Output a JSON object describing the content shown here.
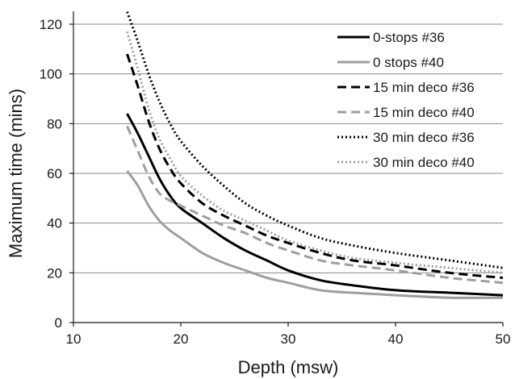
{
  "chart_data": {
    "type": "line",
    "title": "",
    "xlabel": "Depth (msw)",
    "ylabel": "Maximum time (mins)",
    "xlim": [
      10,
      50
    ],
    "ylim": [
      0,
      120
    ],
    "x_ticks": [
      10,
      20,
      30,
      40,
      50
    ],
    "y_ticks": [
      0,
      20,
      40,
      60,
      80,
      100,
      120
    ],
    "grid": "horizontal",
    "legend_position": "top-right",
    "series": [
      {
        "name": "0-stops #36",
        "color": "#000000",
        "dash": "solid",
        "x": [
          15,
          16,
          17,
          18,
          19,
          20,
          22,
          24,
          26,
          28,
          30,
          33,
          36,
          40,
          45,
          50
        ],
        "y": [
          84,
          76,
          67,
          58,
          51,
          46,
          40,
          34,
          29,
          25,
          21,
          17,
          15,
          13,
          12,
          11
        ]
      },
      {
        "name": "0 stops #40",
        "color": "#9e9e9e",
        "dash": "solid",
        "x": [
          15,
          16,
          17,
          18,
          19,
          20,
          22,
          24,
          26,
          28,
          30,
          33,
          36,
          40,
          45,
          50
        ],
        "y": [
          61,
          55,
          47,
          41,
          37,
          34,
          28,
          24,
          21,
          18,
          16,
          13,
          12,
          11,
          10,
          10
        ]
      },
      {
        "name": "15 min deco #36",
        "color": "#000000",
        "dash": "dashed",
        "x": [
          15,
          16,
          17,
          18,
          19,
          20,
          22,
          24,
          26,
          28,
          30,
          33,
          36,
          40,
          45,
          50
        ],
        "y": [
          108,
          95,
          81,
          70,
          62,
          56,
          48,
          43,
          39,
          35,
          32,
          28,
          25,
          23,
          20,
          18
        ]
      },
      {
        "name": "15 min deco #40",
        "color": "#9e9e9e",
        "dash": "dashed",
        "x": [
          15,
          16,
          17,
          18,
          19,
          20,
          22,
          24,
          26,
          28,
          30,
          33,
          36,
          40,
          45,
          50
        ],
        "y": [
          79,
          69,
          59,
          52,
          49,
          47,
          43,
          39,
          36,
          32,
          29,
          25,
          23,
          21,
          18,
          16
        ]
      },
      {
        "name": "30 min deco #36",
        "color": "#000000",
        "dash": "dotted",
        "x": [
          15,
          16,
          17,
          18,
          19,
          20,
          22,
          24,
          26,
          28,
          30,
          33,
          36,
          40,
          45,
          50
        ],
        "y": [
          125,
          113,
          100,
          89,
          80,
          73,
          63,
          55,
          48,
          43,
          39,
          34,
          31,
          28,
          25,
          22
        ]
      },
      {
        "name": "30 min deco #40",
        "color": "#9e9e9e",
        "dash": "dotted",
        "x": [
          15,
          16,
          17,
          18,
          19,
          20,
          22,
          24,
          26,
          28,
          30,
          33,
          36,
          40,
          45,
          50
        ],
        "y": [
          117,
          102,
          86,
          74,
          66,
          59,
          51,
          45,
          41,
          37,
          33,
          29,
          26,
          24,
          22,
          20
        ]
      }
    ]
  }
}
